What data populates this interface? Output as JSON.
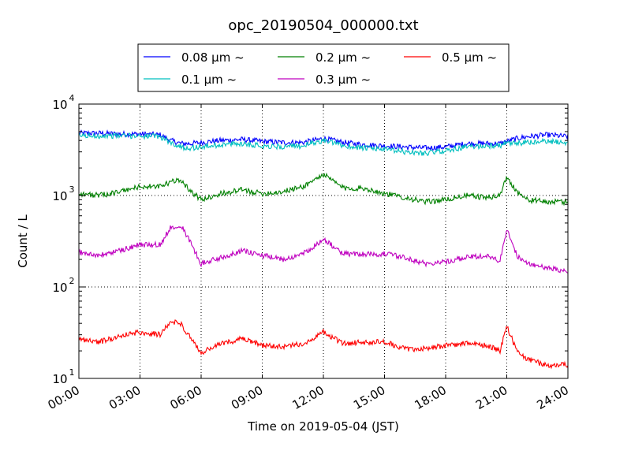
{
  "chart_data": {
    "type": "line",
    "title": "opc_20190504_000000.txt",
    "xlabel": "Time on 2019-05-04 (JST)",
    "ylabel": "Count / L",
    "yscale": "log",
    "ylim": [
      10,
      10000
    ],
    "xlim": [
      "00:00",
      "24:00"
    ],
    "x_ticks": [
      "00:00",
      "03:00",
      "06:00",
      "09:00",
      "12:00",
      "15:00",
      "18:00",
      "21:00",
      "24:00"
    ],
    "y_ticks": [
      {
        "value": 10,
        "base": "10",
        "exp": "1"
      },
      {
        "value": 100,
        "base": "10",
        "exp": "2"
      },
      {
        "value": 1000,
        "base": "10",
        "exp": "3"
      },
      {
        "value": 10000,
        "base": "10",
        "exp": "4"
      }
    ],
    "grid": true,
    "legend_position": "top-center",
    "x": [
      "00:00",
      "01:00",
      "02:00",
      "03:00",
      "04:00",
      "04:30",
      "05:00",
      "05:30",
      "06:00",
      "07:00",
      "08:00",
      "09:00",
      "10:00",
      "11:00",
      "12:00",
      "13:00",
      "14:00",
      "15:00",
      "16:00",
      "17:00",
      "18:00",
      "19:00",
      "20:00",
      "20:40",
      "21:00",
      "21:30",
      "22:00",
      "23:00",
      "24:00"
    ],
    "series": [
      {
        "name": "0.08 μm ~",
        "color": "#0000ff",
        "values": [
          4800,
          4800,
          4700,
          4700,
          4600,
          4000,
          3700,
          3700,
          3800,
          4000,
          4100,
          3900,
          3800,
          3800,
          4200,
          3800,
          3600,
          3500,
          3400,
          3300,
          3400,
          3700,
          3700,
          3700,
          3900,
          4200,
          4400,
          4600,
          4400
        ]
      },
      {
        "name": "0.1 μm ~",
        "color": "#00bfbf",
        "values": [
          4500,
          4500,
          4500,
          4500,
          4400,
          3800,
          3400,
          3300,
          3400,
          3600,
          3700,
          3500,
          3400,
          3500,
          4000,
          3500,
          3300,
          3200,
          3000,
          2900,
          3100,
          3400,
          3500,
          3500,
          3700,
          3700,
          3800,
          3900,
          3800
        ]
      },
      {
        "name": "0.2 μm ~",
        "color": "#008000",
        "values": [
          1050,
          1000,
          1100,
          1250,
          1250,
          1400,
          1500,
          1100,
          900,
          1050,
          1150,
          1050,
          1100,
          1250,
          1700,
          1200,
          1200,
          1050,
          950,
          850,
          900,
          1000,
          950,
          1000,
          1600,
          1100,
          900,
          850,
          850
        ]
      },
      {
        "name": "0.3 μm ~",
        "color": "#bf00bf",
        "values": [
          240,
          220,
          250,
          290,
          290,
          450,
          480,
          300,
          180,
          210,
          250,
          220,
          200,
          230,
          330,
          230,
          230,
          230,
          210,
          180,
          190,
          210,
          220,
          190,
          430,
          220,
          180,
          160,
          150
        ]
      },
      {
        "name": "0.5 μm ~",
        "color": "#ff0000",
        "values": [
          27,
          25,
          29,
          32,
          30,
          42,
          40,
          27,
          19,
          24,
          27,
          23,
          22,
          24,
          32,
          24,
          25,
          25,
          21,
          21,
          23,
          24,
          23,
          20,
          37,
          20,
          16,
          14,
          14
        ]
      }
    ]
  }
}
